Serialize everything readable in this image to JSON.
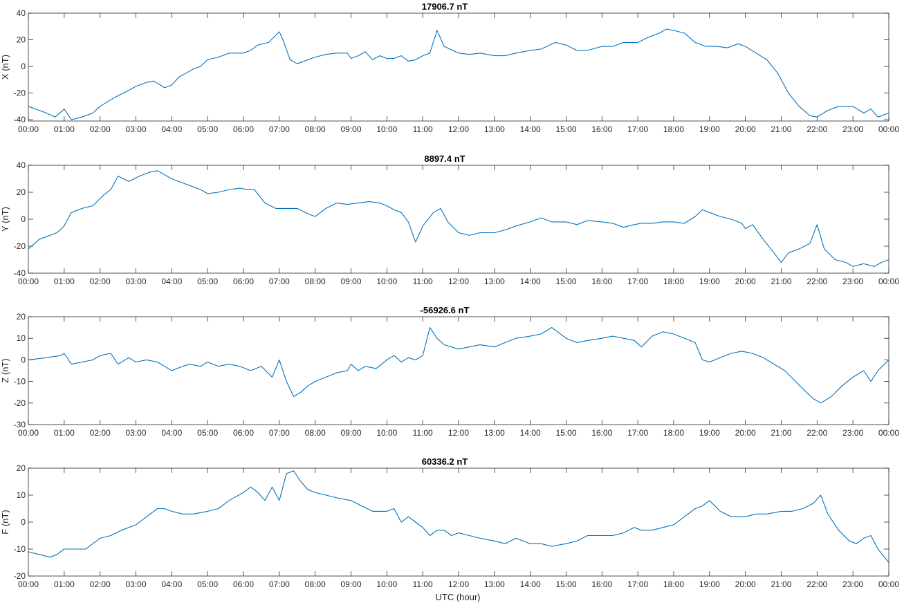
{
  "xlabel": "UTC (hour)",
  "line_color": "#0072bd",
  "x_tick_labels": [
    "00:00",
    "01:00",
    "02:00",
    "03:00",
    "04:00",
    "05:00",
    "06:00",
    "07:00",
    "08:00",
    "09:00",
    "10:00",
    "11:00",
    "12:00",
    "13:00",
    "14:00",
    "15:00",
    "16:00",
    "17:00",
    "18:00",
    "19:00",
    "20:00",
    "21:00",
    "22:00",
    "23:00",
    "00:00"
  ],
  "chart_data": [
    {
      "type": "line",
      "title": "17906.7 nT",
      "ylabel": "X (nT)",
      "xlim": [
        0,
        24
      ],
      "ylim": [
        -41,
        40
      ],
      "yticks": [
        -40,
        -20,
        0,
        20,
        40
      ],
      "x": [
        0,
        0.5,
        0.75,
        1.0,
        1.2,
        1.5,
        1.8,
        2.0,
        2.3,
        2.5,
        2.8,
        3.0,
        3.3,
        3.5,
        3.8,
        4.0,
        4.2,
        4.4,
        4.6,
        4.8,
        5.0,
        5.3,
        5.6,
        6.0,
        6.2,
        6.4,
        6.7,
        7.0,
        7.1,
        7.3,
        7.5,
        7.8,
        8.0,
        8.3,
        8.6,
        8.9,
        9.0,
        9.2,
        9.4,
        9.6,
        9.8,
        10.0,
        10.2,
        10.4,
        10.6,
        10.8,
        11.0,
        11.2,
        11.4,
        11.6,
        12.0,
        12.3,
        12.6,
        13.0,
        13.3,
        13.6,
        14.0,
        14.3,
        14.7,
        15.0,
        15.3,
        15.6,
        16.0,
        16.3,
        16.6,
        17.0,
        17.3,
        17.6,
        17.8,
        18.0,
        18.3,
        18.6,
        18.9,
        19.2,
        19.5,
        19.8,
        20.0,
        20.3,
        20.6,
        20.9,
        21.2,
        21.5,
        21.8,
        22.0,
        22.3,
        22.6,
        23.0,
        23.3,
        23.5,
        23.7,
        24.0
      ],
      "y": [
        -30,
        -35,
        -38,
        -32,
        -40,
        -38,
        -35,
        -30,
        -25,
        -22,
        -18,
        -15,
        -12,
        -11,
        -16,
        -14,
        -8,
        -5,
        -2,
        0,
        5,
        7,
        10,
        10,
        12,
        16,
        18,
        26,
        20,
        5,
        2,
        5,
        7,
        9,
        10,
        10,
        6,
        8,
        11,
        5,
        8,
        6,
        6,
        8,
        4,
        5,
        8,
        10,
        27,
        15,
        10,
        9,
        10,
        8,
        8,
        10,
        12,
        13,
        18,
        16,
        12,
        12,
        15,
        15,
        18,
        18,
        22,
        25,
        28,
        27,
        25,
        18,
        15,
        15,
        14,
        17,
        15,
        10,
        5,
        -5,
        -20,
        -30,
        -37,
        -38,
        -33,
        -30,
        -30,
        -35,
        -32,
        -38,
        -35
      ]
    },
    {
      "type": "line",
      "title": "8897.4 nT",
      "ylabel": "Y (nT)",
      "xlim": [
        0,
        24
      ],
      "ylim": [
        -40,
        40
      ],
      "yticks": [
        -40,
        -20,
        0,
        20,
        40
      ],
      "x": [
        0,
        0.3,
        0.6,
        0.8,
        1.0,
        1.2,
        1.5,
        1.8,
        2.1,
        2.3,
        2.5,
        2.8,
        3.1,
        3.4,
        3.6,
        3.8,
        4.0,
        4.3,
        4.6,
        4.8,
        5.0,
        5.3,
        5.6,
        5.9,
        6.1,
        6.3,
        6.6,
        6.9,
        7.0,
        7.2,
        7.5,
        7.8,
        8.0,
        8.3,
        8.6,
        8.9,
        9.2,
        9.5,
        9.8,
        10.0,
        10.2,
        10.4,
        10.6,
        10.8,
        11.0,
        11.3,
        11.5,
        11.7,
        12.0,
        12.3,
        12.6,
        13.0,
        13.3,
        13.6,
        14.0,
        14.3,
        14.6,
        15.0,
        15.3,
        15.6,
        16.0,
        16.3,
        16.6,
        16.9,
        17.1,
        17.4,
        17.7,
        18.0,
        18.3,
        18.6,
        18.8,
        19.0,
        19.3,
        19.6,
        19.9,
        20.0,
        20.2,
        20.5,
        20.8,
        21.0,
        21.2,
        21.5,
        21.8,
        22.0,
        22.2,
        22.5,
        22.8,
        23.0,
        23.3,
        23.6,
        23.8,
        24.0
      ],
      "y": [
        -22,
        -15,
        -12,
        -10,
        -5,
        5,
        8,
        10,
        18,
        22,
        32,
        28,
        32,
        35,
        36,
        33,
        30,
        27,
        24,
        22,
        19,
        20,
        22,
        23,
        22,
        22,
        12,
        8,
        8,
        8,
        8,
        4,
        2,
        8,
        12,
        11,
        12,
        13,
        12,
        10,
        7,
        5,
        -2,
        -17,
        -5,
        5,
        8,
        -2,
        -10,
        -12,
        -10,
        -10,
        -8,
        -5,
        -2,
        1,
        -2,
        -2,
        -4,
        -1,
        -2,
        -3,
        -6,
        -4,
        -3,
        -3,
        -2,
        -2,
        -3,
        2,
        7,
        5,
        2,
        0,
        -3,
        -7,
        -4,
        -15,
        -25,
        -32,
        -25,
        -22,
        -18,
        -4,
        -22,
        -30,
        -32,
        -35,
        -33,
        -35,
        -32,
        -30
      ]
    },
    {
      "type": "line",
      "title": "-56926.6 nT",
      "ylabel": "Z (nT)",
      "xlim": [
        0,
        24
      ],
      "ylim": [
        -30,
        20
      ],
      "yticks": [
        -30,
        -20,
        -10,
        0,
        10,
        20
      ],
      "x": [
        0,
        0.5,
        0.9,
        1.0,
        1.2,
        1.5,
        1.8,
        2.0,
        2.3,
        2.5,
        2.8,
        3.0,
        3.3,
        3.6,
        3.8,
        4.0,
        4.3,
        4.5,
        4.8,
        5.0,
        5.3,
        5.6,
        5.9,
        6.2,
        6.5,
        6.8,
        7.0,
        7.2,
        7.4,
        7.6,
        7.8,
        8.0,
        8.3,
        8.6,
        8.9,
        9.0,
        9.2,
        9.4,
        9.7,
        10.0,
        10.2,
        10.4,
        10.6,
        10.8,
        11.0,
        11.2,
        11.4,
        11.6,
        11.8,
        12.0,
        12.3,
        12.6,
        13.0,
        13.3,
        13.6,
        14.0,
        14.3,
        14.6,
        15.0,
        15.3,
        15.6,
        16.0,
        16.3,
        16.6,
        16.9,
        17.1,
        17.4,
        17.7,
        18.0,
        18.3,
        18.6,
        18.8,
        19.0,
        19.3,
        19.6,
        19.9,
        20.2,
        20.5,
        20.8,
        21.1,
        21.4,
        21.7,
        21.9,
        22.1,
        22.4,
        22.7,
        23.0,
        23.3,
        23.5,
        23.7,
        24.0
      ],
      "y": [
        0,
        1,
        2,
        3,
        -2,
        -1,
        0,
        2,
        3,
        -2,
        1,
        -1,
        0,
        -1,
        -3,
        -5,
        -3,
        -2,
        -3,
        -1,
        -3,
        -2,
        -3,
        -5,
        -3,
        -8,
        0,
        -10,
        -17,
        -15,
        -12,
        -10,
        -8,
        -6,
        -5,
        -2,
        -5,
        -3,
        -4,
        0,
        2,
        -1,
        1,
        0,
        2,
        15,
        10,
        7,
        6,
        5,
        6,
        7,
        6,
        8,
        10,
        11,
        12,
        15,
        10,
        8,
        9,
        10,
        11,
        10,
        9,
        6,
        11,
        13,
        12,
        10,
        8,
        0,
        -1,
        1,
        3,
        4,
        3,
        1,
        -2,
        -5,
        -10,
        -15,
        -18,
        -20,
        -17,
        -12,
        -8,
        -5,
        -10,
        -5,
        0
      ]
    },
    {
      "type": "line",
      "title": "60336.2 nT",
      "ylabel": "F (nT)",
      "xlim": [
        0,
        24
      ],
      "ylim": [
        -20,
        20
      ],
      "yticks": [
        -20,
        -10,
        0,
        10,
        20
      ],
      "x": [
        0,
        0.3,
        0.6,
        0.8,
        1.0,
        1.3,
        1.6,
        1.8,
        2.0,
        2.3,
        2.6,
        3.0,
        3.3,
        3.6,
        3.8,
        4.0,
        4.3,
        4.6,
        5.0,
        5.3,
        5.6,
        6.0,
        6.2,
        6.4,
        6.6,
        6.8,
        7.0,
        7.2,
        7.4,
        7.6,
        7.8,
        8.0,
        8.3,
        8.6,
        9.0,
        9.3,
        9.6,
        10.0,
        10.2,
        10.4,
        10.6,
        10.8,
        11.0,
        11.2,
        11.4,
        11.6,
        11.8,
        12.0,
        12.3,
        12.6,
        13.0,
        13.3,
        13.6,
        14.0,
        14.3,
        14.6,
        15.0,
        15.3,
        15.6,
        16.0,
        16.3,
        16.6,
        16.9,
        17.1,
        17.4,
        17.7,
        18.0,
        18.3,
        18.6,
        18.8,
        19.0,
        19.3,
        19.6,
        20.0,
        20.3,
        20.6,
        21.0,
        21.3,
        21.6,
        21.9,
        22.1,
        22.3,
        22.6,
        22.9,
        23.1,
        23.3,
        23.5,
        23.7,
        24.0
      ],
      "y": [
        -11,
        -12,
        -13,
        -12,
        -10,
        -10,
        -10,
        -8,
        -6,
        -5,
        -3,
        -1,
        2,
        5,
        5,
        4,
        3,
        3,
        4,
        5,
        8,
        11,
        13,
        11,
        8,
        13,
        8,
        18,
        19,
        15,
        12,
        11,
        10,
        9,
        8,
        6,
        4,
        4,
        5,
        0,
        2,
        0,
        -2,
        -5,
        -3,
        -3,
        -5,
        -4,
        -5,
        -6,
        -7,
        -8,
        -6,
        -8,
        -8,
        -9,
        -8,
        -7,
        -5,
        -5,
        -5,
        -4,
        -2,
        -3,
        -3,
        -2,
        -1,
        2,
        5,
        6,
        8,
        4,
        2,
        2,
        3,
        3,
        4,
        4,
        5,
        7,
        10,
        3,
        -3,
        -7,
        -8,
        -6,
        -5,
        -10,
        -15
      ]
    }
  ]
}
